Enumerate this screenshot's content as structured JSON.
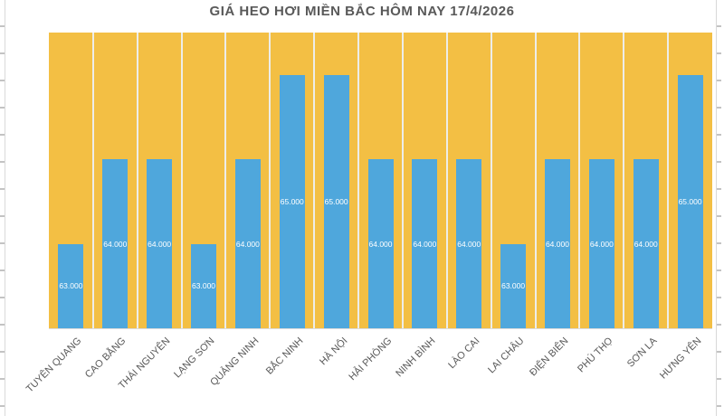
{
  "chart_data": {
    "type": "bar",
    "title": "GIÁ HEO HƠI MIỀN BẮC HÔM NAY 17/4/2026",
    "categories": [
      "TUYÊN QUANG",
      "CAO BẰNG",
      "THÁI NGUYÊN",
      "LẠNG SƠN",
      "QUẢNG NINH",
      "BẮC NINH",
      "HÀ NỘI",
      "HẢI PHÒNG",
      "NINH BÌNH",
      "LÀO CAI",
      "LAI CHÂU",
      "ĐIỆN BIÊN",
      "PHÚ THỌ",
      "SƠN LA",
      "HƯNG YÊN"
    ],
    "values": [
      63000,
      64000,
      64000,
      63000,
      64000,
      65000,
      65000,
      64000,
      64000,
      64000,
      63000,
      64000,
      64000,
      64000,
      65000
    ],
    "value_labels": [
      "63.000",
      "64.000",
      "64.000",
      "63.000",
      "64.000",
      "65.000",
      "65.000",
      "64.000",
      "64.000",
      "64.000",
      "63.000",
      "64.000",
      "64.000",
      "64.000",
      "65.000"
    ],
    "xlabel": "",
    "ylabel": "",
    "ylim": [
      62000,
      65500
    ],
    "grid": "vertical white lines between categories",
    "legend": "none",
    "data_label_position": "inside-center",
    "colors": {
      "bar": "#4FA7DC",
      "plot_background": "#F3BF44",
      "gridline": "#EDEDE9",
      "value_label_text": "#FFFFFF",
      "axis_text": "#595959",
      "title_text": "#595959",
      "frame_line": "#D9D9D9"
    }
  }
}
